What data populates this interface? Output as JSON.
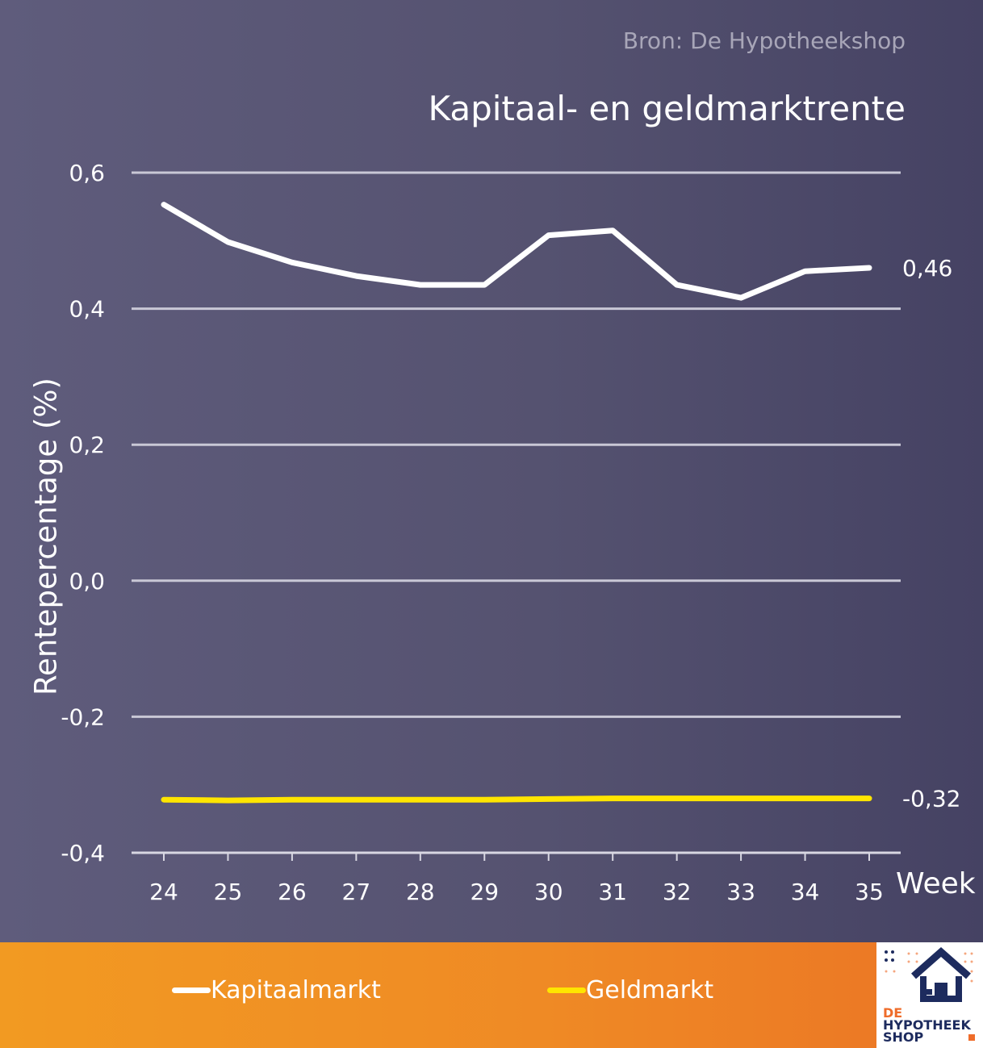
{
  "source": "Bron: De Hypotheekshop",
  "colors": {
    "background": "#555270",
    "kapitaalmarkt": "#ffffff",
    "geldmarkt": "#ffe500",
    "legend_bar": "#ef8a25",
    "logo_navy": "#1d2b5e",
    "logo_orange": "#ef6c2a"
  },
  "logo": {
    "line1": "DE",
    "line2": "HYPOTHEEK",
    "line3": "SHOP",
    "icon": "house-icon"
  },
  "chart_data": {
    "type": "line",
    "title": "Kapitaal- en geldmarktrente",
    "xlabel": "Week",
    "ylabel": "Rentepercentage (%)",
    "ylim": [
      -0.4,
      0.6
    ],
    "yticks": [
      0.6,
      0.4,
      0.2,
      0.0,
      -0.2,
      -0.4
    ],
    "ytick_labels": [
      "0,6",
      "0,4",
      "0,2",
      "0,0",
      "-0,2",
      "-0,4"
    ],
    "x": [
      "24",
      "25",
      "26",
      "27",
      "28",
      "29",
      "30",
      "31",
      "32",
      "33",
      "34",
      "35"
    ],
    "grid": true,
    "legend_position": "bottom",
    "series": [
      {
        "name": "Kapitaalmarkt",
        "color": "#ffffff",
        "values": [
          0.553,
          0.498,
          0.468,
          0.448,
          0.435,
          0.435,
          0.508,
          0.515,
          0.435,
          0.416,
          0.455,
          0.46
        ],
        "end_label": "0,46"
      },
      {
        "name": "Geldmarkt",
        "color": "#ffe500",
        "values": [
          -0.322,
          -0.323,
          -0.322,
          -0.322,
          -0.322,
          -0.322,
          -0.321,
          -0.32,
          -0.32,
          -0.32,
          -0.32,
          -0.32
        ],
        "end_label": "-0,32"
      }
    ]
  }
}
